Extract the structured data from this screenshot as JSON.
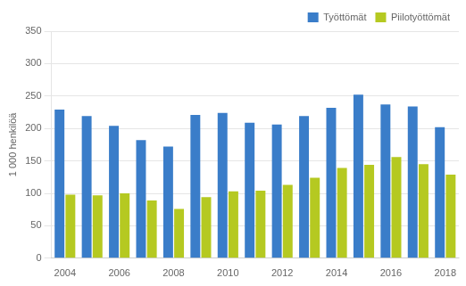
{
  "chart_data": {
    "type": "bar",
    "ylabel": "1 000 henkilöä",
    "categories": [
      "2004",
      null,
      "2006",
      null,
      "2008",
      null,
      "2010",
      null,
      "2012",
      null,
      "2014",
      null,
      "2016",
      null,
      "2018"
    ],
    "series": [
      {
        "name": "Työttömät",
        "color": "#3a7dc9",
        "values": [
          229,
          219,
          204,
          182,
          172,
          221,
          224,
          209,
          206,
          219,
          232,
          252,
          237,
          234,
          202
        ]
      },
      {
        "name": "Piilotyöttömät",
        "color": "#b5c921",
        "values": [
          98,
          97,
          100,
          89,
          76,
          94,
          103,
          104,
          113,
          124,
          139,
          144,
          156,
          145,
          129
        ]
      }
    ],
    "ylim": [
      0,
      350
    ],
    "yticks": [
      0,
      50,
      100,
      150,
      200,
      250,
      300,
      350
    ],
    "grid": true,
    "legend": "upper right"
  }
}
